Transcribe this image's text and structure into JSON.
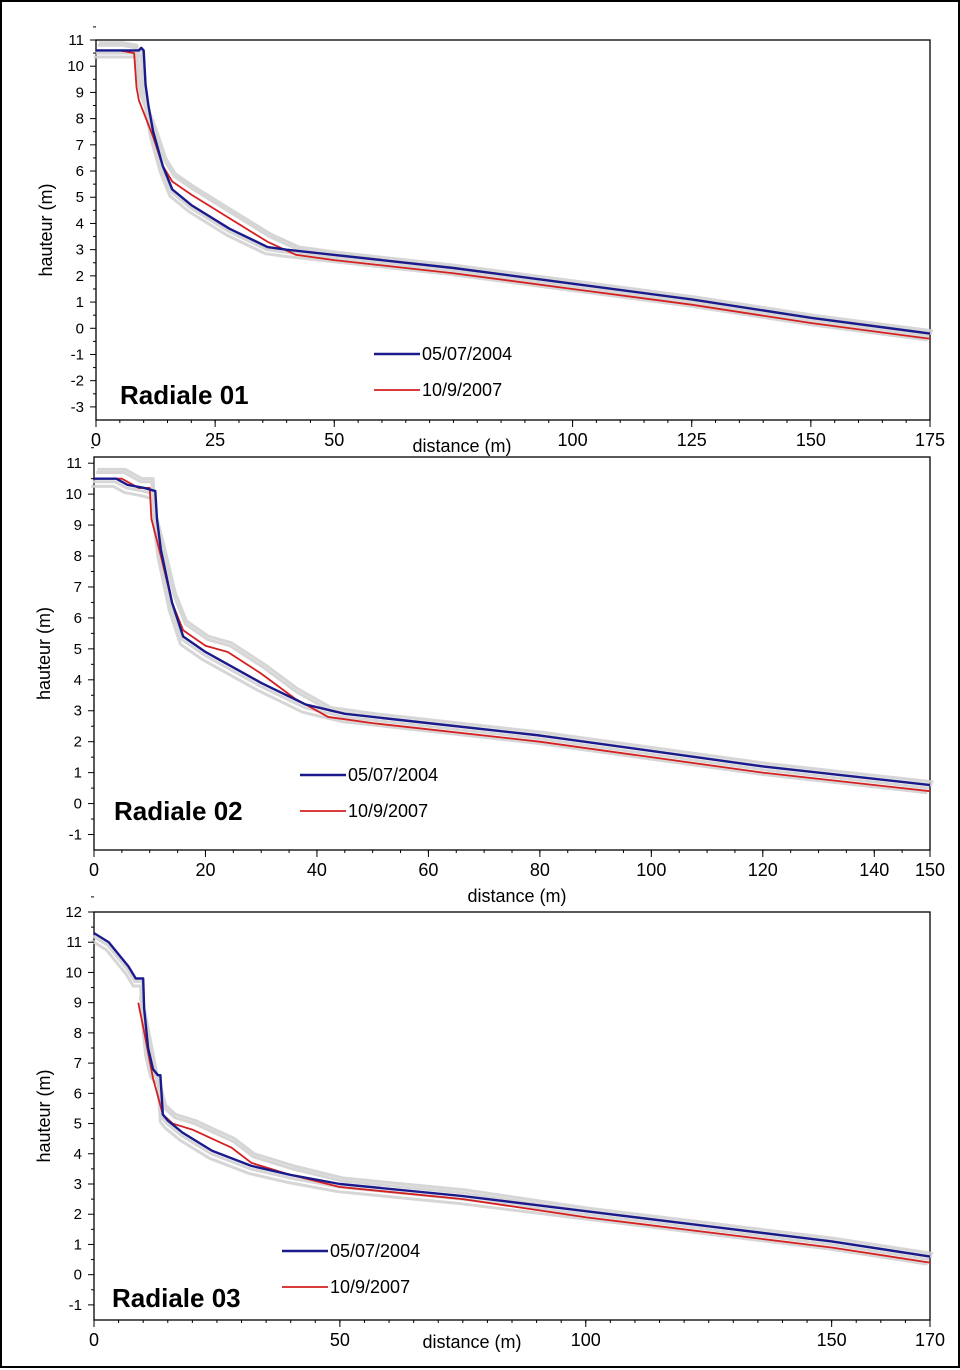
{
  "colors": {
    "series_2004": "#1a1a8c",
    "series_2007": "#d42020",
    "envelope": "#d2d2d2"
  },
  "chart_data": [
    {
      "type": "line",
      "title": "Radiale 01",
      "xlabel": "distance (m)",
      "ylabel": "hauteur (m)",
      "xlim": [
        0,
        175
      ],
      "ylim": [
        -3.5,
        11
      ],
      "xticks": [
        0,
        25,
        50,
        100,
        125,
        150,
        175
      ],
      "yticks": [
        -3,
        -2,
        -1,
        0,
        1,
        2,
        3,
        4,
        5,
        6,
        7,
        8,
        9,
        10,
        11
      ],
      "grid": false,
      "legend": "bottom-center",
      "series": [
        {
          "name": "05/07/2004",
          "x": [
            0,
            8,
            9,
            9.5,
            10,
            10.4,
            11,
            12,
            14,
            16,
            20,
            28,
            36,
            40,
            50,
            75,
            100,
            125,
            150,
            175
          ],
          "y": [
            10.6,
            10.6,
            10.6,
            10.7,
            10.6,
            9.3,
            8.5,
            7.5,
            6.2,
            5.3,
            4.7,
            3.8,
            3.1,
            3.0,
            2.8,
            2.3,
            1.7,
            1.1,
            0.4,
            -0.2
          ]
        },
        {
          "name": "10/9/2007",
          "x": [
            0,
            5,
            8,
            8.5,
            9,
            12,
            14,
            16,
            20,
            28,
            36,
            42,
            50,
            75,
            100,
            125,
            150,
            175
          ],
          "y": [
            10.6,
            10.6,
            10.5,
            9.2,
            8.7,
            7.3,
            6.2,
            5.6,
            5.1,
            4.2,
            3.3,
            2.8,
            2.6,
            2.1,
            1.5,
            0.9,
            0.2,
            -0.4
          ]
        }
      ]
    },
    {
      "type": "line",
      "title": "Radiale 02",
      "xlabel": "distance (m)",
      "ylabel": "hauteur (m)",
      "xlim": [
        0,
        150
      ],
      "ylim": [
        -1.5,
        11.2
      ],
      "xticks": [
        0,
        20,
        40,
        60,
        80,
        100,
        120,
        140,
        150
      ],
      "yticks": [
        -1,
        0,
        1,
        2,
        3,
        4,
        5,
        6,
        7,
        8,
        9,
        10,
        11
      ],
      "grid": false,
      "legend": "bottom-center",
      "series": [
        {
          "name": "05/07/2004",
          "x": [
            0,
            4,
            6,
            9,
            11,
            11.3,
            12,
            14,
            16,
            20,
            25,
            30,
            38,
            45,
            60,
            80,
            100,
            120,
            150
          ],
          "y": [
            10.5,
            10.5,
            10.3,
            10.2,
            10.1,
            9.2,
            8.2,
            6.5,
            5.4,
            4.9,
            4.4,
            3.9,
            3.2,
            2.9,
            2.6,
            2.2,
            1.7,
            1.2,
            0.6
          ]
        },
        {
          "name": "10/9/2007",
          "x": [
            0,
            5,
            8,
            10,
            10.3,
            12,
            14,
            16,
            20,
            24,
            30,
            36,
            42,
            50,
            60,
            80,
            100,
            120,
            150
          ],
          "y": [
            10.5,
            10.5,
            10.2,
            10.2,
            9.2,
            8.0,
            6.5,
            5.6,
            5.1,
            4.9,
            4.2,
            3.4,
            2.8,
            2.6,
            2.4,
            2.0,
            1.5,
            1.0,
            0.4
          ]
        }
      ]
    },
    {
      "type": "line",
      "title": "Radiale 03",
      "xlabel": "distance (m)",
      "ylabel": "hauteur (m)",
      "xlim": [
        0,
        170
      ],
      "ylim": [
        -1.5,
        12
      ],
      "xticks": [
        0,
        50,
        100,
        150,
        170
      ],
      "yticks": [
        -1,
        0,
        1,
        2,
        3,
        4,
        5,
        6,
        7,
        8,
        9,
        10,
        11,
        12
      ],
      "grid": false,
      "legend": "bottom-left",
      "series": [
        {
          "name": "05/07/2004",
          "x": [
            0,
            3,
            6,
            7,
            8.5,
            9,
            10,
            10.2,
            11,
            12,
            13,
            13.5,
            14,
            15,
            18,
            24,
            32,
            40,
            50,
            75,
            100,
            125,
            150,
            170
          ],
          "y": [
            11.3,
            11.0,
            10.4,
            10.2,
            9.8,
            9.8,
            9.8,
            8.8,
            7.5,
            6.8,
            6.6,
            6.6,
            5.3,
            5.1,
            4.7,
            4.1,
            3.6,
            3.3,
            3.0,
            2.6,
            2.1,
            1.6,
            1.1,
            0.6
          ]
        },
        {
          "name": "10/9/2007",
          "x": [
            9,
            10,
            12,
            14,
            16,
            20,
            24,
            28,
            32,
            40,
            50,
            75,
            100,
            125,
            150,
            170
          ],
          "y": [
            9.0,
            8.2,
            6.5,
            5.3,
            5.0,
            4.8,
            4.5,
            4.2,
            3.7,
            3.3,
            2.9,
            2.5,
            1.9,
            1.4,
            0.9,
            0.4
          ]
        }
      ]
    }
  ]
}
